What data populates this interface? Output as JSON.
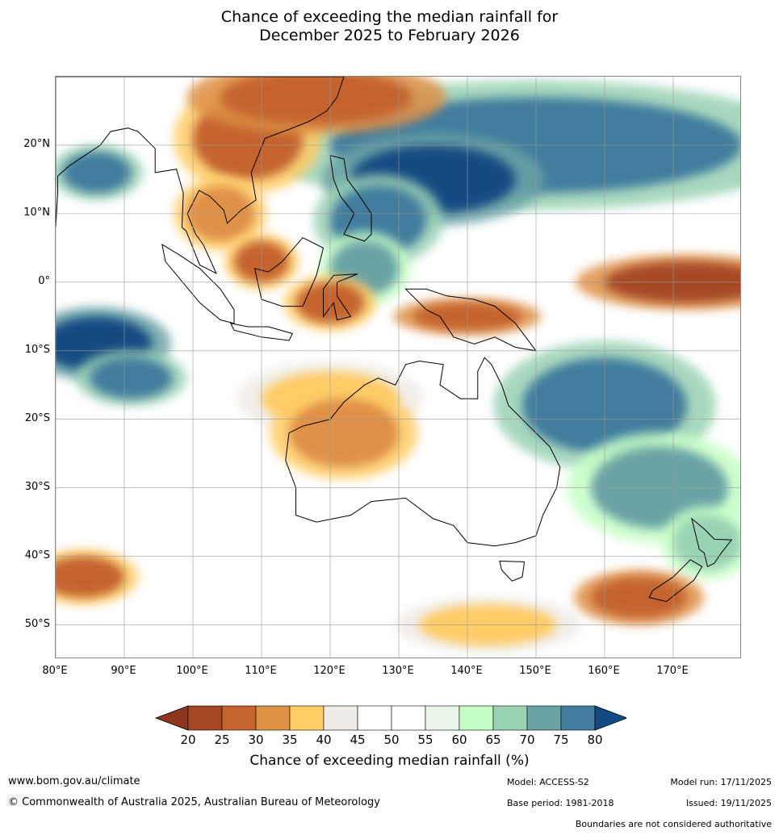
{
  "title": {
    "line1": "Chance of exceeding the median rainfall for",
    "line2": "December 2025 to February 2026"
  },
  "map": {
    "lon_range": [
      80,
      180
    ],
    "lat_range": [
      -55,
      30
    ],
    "lat_ticks": [
      {
        "value": 20,
        "label": "20°N"
      },
      {
        "value": 10,
        "label": "10°N"
      },
      {
        "value": 0,
        "label": "0°"
      },
      {
        "value": -10,
        "label": "10°S"
      },
      {
        "value": -20,
        "label": "20°S"
      },
      {
        "value": -30,
        "label": "30°S"
      },
      {
        "value": -40,
        "label": "40°S"
      },
      {
        "value": -50,
        "label": "50°S"
      }
    ],
    "lon_ticks": [
      {
        "value": 80,
        "label": "80°E"
      },
      {
        "value": 90,
        "label": "90°E"
      },
      {
        "value": 100,
        "label": "100°E"
      },
      {
        "value": 110,
        "label": "110°E"
      },
      {
        "value": 120,
        "label": "120°E"
      },
      {
        "value": 130,
        "label": "130°E"
      },
      {
        "value": 140,
        "label": "140°E"
      },
      {
        "value": 150,
        "label": "150°E"
      },
      {
        "value": 160,
        "label": "160°E"
      },
      {
        "value": 170,
        "label": "170°E"
      }
    ],
    "grid": true,
    "regions": [
      {
        "name": "north-pacific-wet",
        "lon": 150,
        "lat": 20,
        "rx": 30,
        "ry": 7,
        "value": 78
      },
      {
        "name": "philippines-sea-wet",
        "lon": 135,
        "lat": 15,
        "rx": 12,
        "ry": 5,
        "value": 80
      },
      {
        "name": "philippine-wet",
        "lon": 127,
        "lat": 9,
        "rx": 7,
        "ry": 5,
        "value": 75
      },
      {
        "name": "maluku-wet",
        "lon": 125,
        "lat": 2,
        "rx": 5,
        "ry": 4,
        "value": 72
      },
      {
        "name": "indian-ocean-wet",
        "lon": 86,
        "lat": -9,
        "rx": 8,
        "ry": 4,
        "value": 80
      },
      {
        "name": "indian-ocean-wet-2",
        "lon": 91,
        "lat": -14,
        "rx": 6,
        "ry": 3,
        "value": 75
      },
      {
        "name": "bay-of-bengal-wet",
        "lon": 86,
        "lat": 16,
        "rx": 5,
        "ry": 3,
        "value": 75
      },
      {
        "name": "coral-sea-wet",
        "lon": 160,
        "lat": -18,
        "rx": 12,
        "ry": 7,
        "value": 78
      },
      {
        "name": "tasman-wet",
        "lon": 168,
        "lat": -30,
        "rx": 10,
        "ry": 6,
        "value": 70
      },
      {
        "name": "nz-wet",
        "lon": 175,
        "lat": -38,
        "rx": 5,
        "ry": 4,
        "value": 68
      },
      {
        "name": "equatorial-pacific-dry",
        "lon": 172,
        "lat": 0,
        "rx": 12,
        "ry": 3,
        "value": 22
      },
      {
        "name": "indochina-dry",
        "lon": 108,
        "lat": 21,
        "rx": 8,
        "ry": 6,
        "value": 28
      },
      {
        "name": "south-china-dry",
        "lon": 118,
        "lat": 27,
        "rx": 14,
        "ry": 4,
        "value": 25
      },
      {
        "name": "gulf-thailand-dry",
        "lon": 104,
        "lat": 10,
        "rx": 5,
        "ry": 4,
        "value": 30
      },
      {
        "name": "borneo-dry",
        "lon": 110,
        "lat": 3,
        "rx": 4,
        "ry": 3,
        "value": 28
      },
      {
        "name": "sulawesi-dry",
        "lon": 120,
        "lat": -3,
        "rx": 5,
        "ry": 3,
        "value": 28
      },
      {
        "name": "new-guinea-dry",
        "lon": 140,
        "lat": -5,
        "rx": 8,
        "ry": 2,
        "value": 25
      },
      {
        "name": "nw-australia-dry",
        "lon": 120,
        "lat": -17,
        "rx": 10,
        "ry": 4,
        "value": 35
      },
      {
        "name": "wa-dry",
        "lon": 122,
        "lat": -22,
        "rx": 8,
        "ry": 5,
        "value": 30
      },
      {
        "name": "southern-indian-dry",
        "lon": 84,
        "lat": -43,
        "rx": 6,
        "ry": 3,
        "value": 28
      },
      {
        "name": "great-australian-bight-dry",
        "lon": 143,
        "lat": -50,
        "rx": 10,
        "ry": 3,
        "value": 35
      },
      {
        "name": "south-nz-dry",
        "lon": 165,
        "lat": -46,
        "rx": 7,
        "ry": 3,
        "value": 25
      }
    ]
  },
  "colorbar": {
    "bounds": [
      20,
      25,
      30,
      35,
      40,
      45,
      50,
      55,
      60,
      65,
      70,
      75,
      80
    ],
    "tick_labels": [
      "20",
      "25",
      "30",
      "35",
      "40",
      "45",
      "50",
      "55",
      "60",
      "65",
      "70",
      "75",
      "80"
    ],
    "colors": [
      "#a64826",
      "#c4642e",
      "#df9146",
      "#ffcc66",
      "#efebe6",
      "#ffffff",
      "#ffffff",
      "#e8f5e8",
      "#c6ffc6",
      "#9ad2b4",
      "#6aa3a6",
      "#437d9e"
    ],
    "under_color": "#8e351f",
    "over_color": "#124b82",
    "label": "Chance of exceeding median rainfall (%)"
  },
  "footer": {
    "website": "www.bom.gov.au/climate",
    "copyright": "© Commonwealth of Australia 2025, Australian Bureau of Meteorology",
    "model": "Model: ACCESS-S2",
    "base_period": "Base period: 1981-2018",
    "model_run": "Model run: 17/11/2025",
    "issued": "Issued: 19/11/2025",
    "disclaimer": "Boundaries are not considered authoritative"
  }
}
